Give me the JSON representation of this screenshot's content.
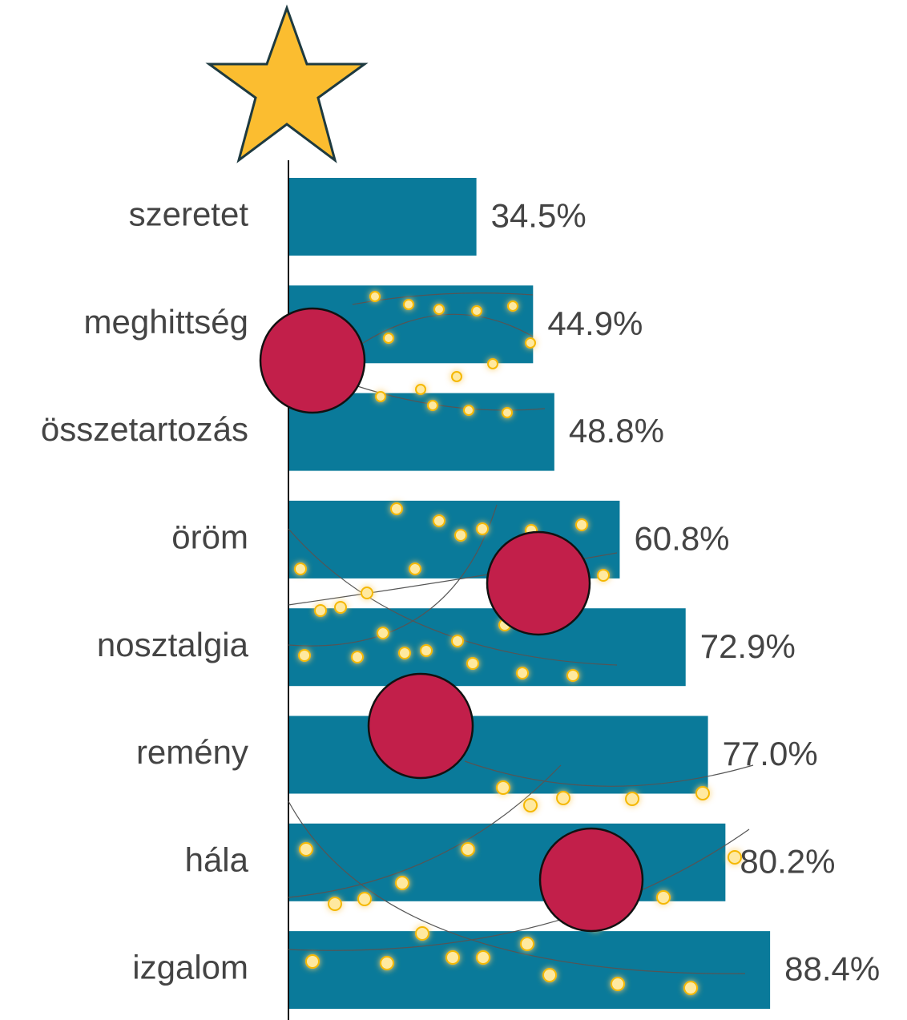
{
  "chart_data": {
    "type": "bar",
    "orientation": "horizontal",
    "categories": [
      "szeretet",
      "meghittség",
      "összetartozás",
      "öröm",
      "nosztalgia",
      "remény",
      "hála",
      "izgalom"
    ],
    "values": [
      34.5,
      44.9,
      48.8,
      60.8,
      72.9,
      77.0,
      80.2,
      88.4
    ],
    "value_labels": [
      "34.5%",
      "44.9%",
      "48.8%",
      "60.8%",
      "72.9%",
      "77.0%",
      "80.2%",
      "88.4%"
    ],
    "color": "#0a7a9a",
    "xlim": [
      0,
      100
    ]
  }
}
